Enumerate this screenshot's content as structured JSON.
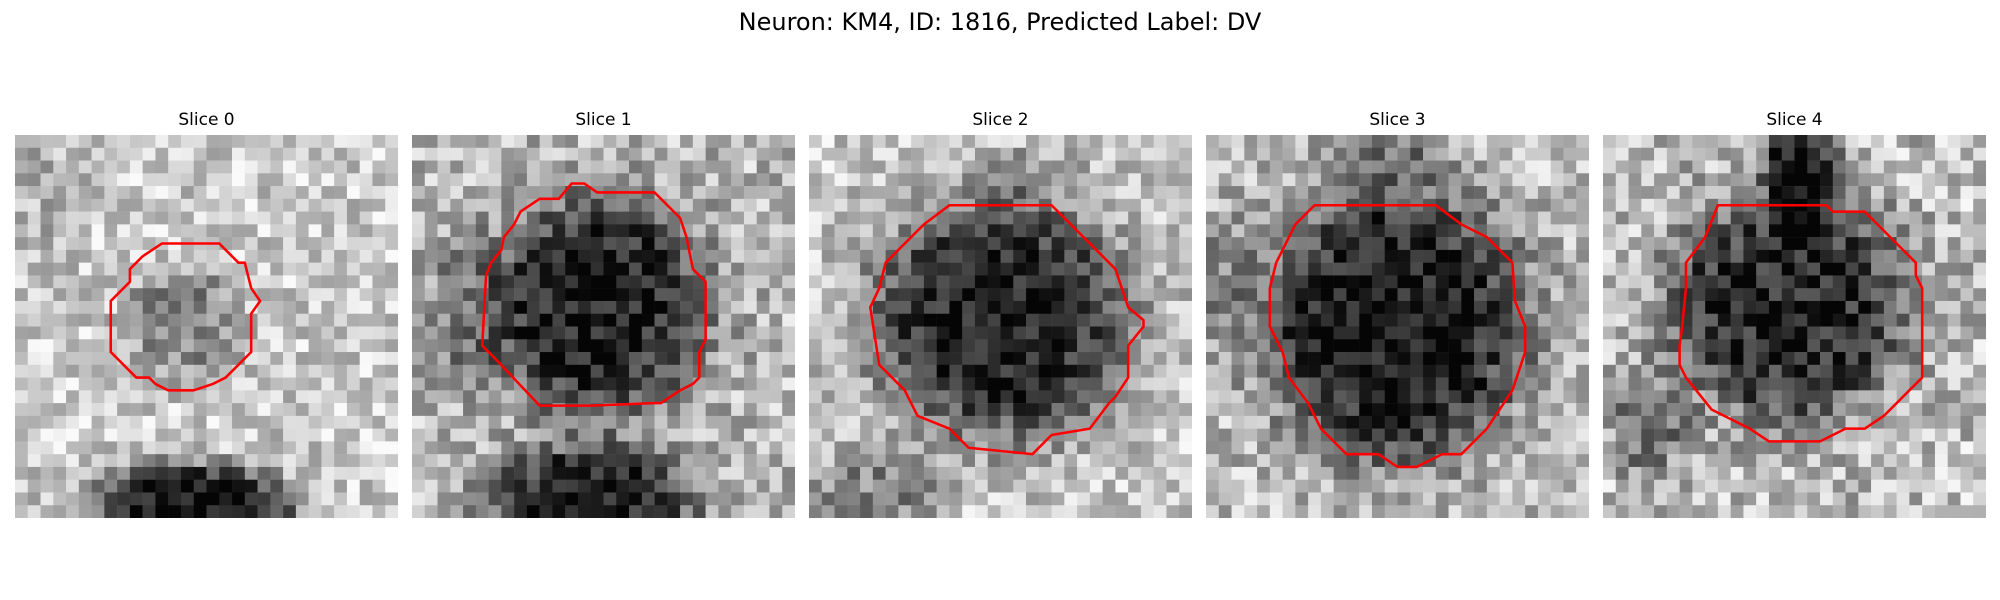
{
  "figure": {
    "title": "Neuron: KM4, ID: 1816, Predicted Label: DV"
  },
  "panels": [
    {
      "title": "Slice 0"
    },
    {
      "title": "Slice 1"
    },
    {
      "title": "Slice 2"
    },
    {
      "title": "Slice 3"
    },
    {
      "title": "Slice 4"
    }
  ],
  "colors": {
    "contour": "#ff0000",
    "background": "#ffffff"
  }
}
